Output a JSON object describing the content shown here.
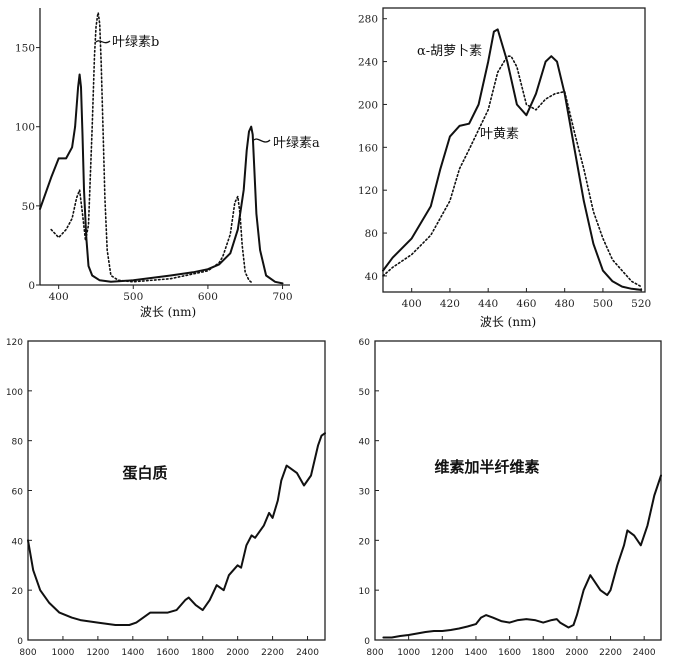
{
  "chart_data": [
    {
      "type": "line",
      "xlabel": "波长 (nm)",
      "ylabel": "",
      "xlim": [
        375,
        710
      ],
      "ylim": [
        0,
        175
      ],
      "xticks": [
        400,
        500,
        600,
        700
      ],
      "yticks": [
        0,
        50,
        100,
        150
      ],
      "series": [
        {
          "name": "叶绿素a",
          "style": "solid",
          "x": [
            375,
            390,
            400,
            410,
            418,
            422,
            426,
            428,
            430,
            432,
            434,
            437,
            440,
            445,
            455,
            470,
            500,
            550,
            580,
            600,
            615,
            630,
            640,
            648,
            652,
            655,
            658,
            660,
            662,
            665,
            670,
            678,
            690,
            700
          ],
          "y": [
            48,
            68,
            80,
            80,
            87,
            100,
            125,
            133,
            125,
            95,
            60,
            30,
            12,
            6,
            3,
            2,
            3,
            6,
            8,
            10,
            13,
            20,
            35,
            60,
            85,
            97,
            100,
            95,
            75,
            45,
            22,
            6,
            2,
            1
          ]
        },
        {
          "name": "叶绿素b",
          "style": "dotted",
          "x": [
            390,
            400,
            410,
            418,
            424,
            428,
            432,
            436,
            440,
            445,
            448,
            450,
            452,
            453,
            455,
            457,
            460,
            462,
            465,
            470,
            480,
            500,
            550,
            600,
            615,
            620,
            630,
            636,
            640,
            643,
            646,
            650,
            655,
            660
          ],
          "y": [
            35,
            30,
            35,
            42,
            55,
            60,
            45,
            28,
            38,
            100,
            145,
            163,
            170,
            172,
            165,
            140,
            90,
            55,
            22,
            6,
            3,
            2,
            4,
            9,
            14,
            18,
            32,
            52,
            56,
            45,
            25,
            8,
            3,
            1
          ]
        }
      ],
      "annotations": [
        "叶绿素b",
        "叶绿素a"
      ]
    },
    {
      "type": "line",
      "xlabel": "波长 (nm)",
      "ylabel": "",
      "xlim": [
        385,
        522
      ],
      "ylim": [
        25,
        290
      ],
      "xticks": [
        400,
        420,
        440,
        460,
        480,
        500,
        520
      ],
      "yticks": [
        40,
        80,
        120,
        160,
        200,
        240,
        280
      ],
      "series": [
        {
          "name": "α-胡萝卜素",
          "style": "solid",
          "x": [
            385,
            390,
            400,
            410,
            415,
            420,
            425,
            430,
            435,
            440,
            443,
            445,
            450,
            455,
            460,
            465,
            470,
            473,
            476,
            480,
            485,
            490,
            495,
            500,
            505,
            510,
            515,
            520
          ],
          "y": [
            45,
            57,
            75,
            105,
            140,
            170,
            180,
            182,
            200,
            240,
            268,
            270,
            240,
            200,
            190,
            210,
            240,
            245,
            240,
            210,
            160,
            110,
            70,
            45,
            35,
            30,
            28,
            27
          ]
        },
        {
          "name": "叶黄素",
          "style": "dotted",
          "x": [
            385,
            390,
            400,
            410,
            420,
            425,
            430,
            440,
            445,
            450,
            452,
            455,
            460,
            465,
            470,
            475,
            480,
            485,
            490,
            495,
            500,
            505,
            510,
            515,
            520
          ],
          "y": [
            40,
            48,
            60,
            78,
            110,
            140,
            158,
            195,
            230,
            245,
            245,
            235,
            200,
            195,
            205,
            210,
            212,
            175,
            140,
            100,
            75,
            55,
            45,
            35,
            30
          ]
        }
      ],
      "annotations": [
        "α-胡萝卜素",
        "叶黄素"
      ]
    },
    {
      "type": "line",
      "xlabel": "",
      "ylabel": "",
      "xlim": [
        800,
        2500
      ],
      "ylim": [
        0,
        120
      ],
      "xticks": [
        800,
        1000,
        1200,
        1400,
        1600,
        1800,
        2000,
        2200,
        2400
      ],
      "yticks": [
        0,
        20,
        40,
        60,
        80,
        100,
        120
      ],
      "series": [
        {
          "name": "蛋白质",
          "style": "solid",
          "x": [
            800,
            830,
            870,
            920,
            980,
            1050,
            1100,
            1200,
            1300,
            1380,
            1420,
            1460,
            1500,
            1550,
            1600,
            1650,
            1700,
            1720,
            1760,
            1800,
            1840,
            1880,
            1920,
            1950,
            2000,
            2020,
            2050,
            2080,
            2100,
            2150,
            2180,
            2200,
            2230,
            2250,
            2280,
            2300,
            2340,
            2380,
            2420,
            2460,
            2480,
            2500
          ],
          "y": [
            40,
            28,
            20,
            15,
            11,
            9,
            8,
            7,
            6,
            6,
            7,
            9,
            11,
            11,
            11,
            12,
            16,
            17,
            14,
            12,
            16,
            22,
            20,
            26,
            30,
            29,
            38,
            42,
            41,
            46,
            51,
            49,
            56,
            64,
            70,
            69,
            67,
            62,
            66,
            78,
            82,
            83
          ]
        }
      ],
      "center_label": "蛋白质"
    },
    {
      "type": "line",
      "xlabel": "",
      "ylabel": "",
      "xlim": [
        800,
        2500
      ],
      "ylim": [
        0,
        60
      ],
      "xticks": [
        800,
        1000,
        1200,
        1400,
        1600,
        1800,
        2000,
        2200,
        2400
      ],
      "yticks": [
        0,
        10,
        20,
        30,
        40,
        50,
        60
      ],
      "series": [
        {
          "name": "维素加半纤维素",
          "style": "solid",
          "x": [
            850,
            900,
            950,
            1000,
            1050,
            1100,
            1150,
            1200,
            1250,
            1300,
            1350,
            1400,
            1430,
            1460,
            1500,
            1550,
            1600,
            1650,
            1700,
            1750,
            1800,
            1850,
            1880,
            1900,
            1950,
            1980,
            2000,
            2040,
            2080,
            2100,
            2140,
            2180,
            2200,
            2240,
            2280,
            2300,
            2340,
            2380,
            2420,
            2460,
            2500
          ],
          "y": [
            0.5,
            0.5,
            0.8,
            1,
            1.3,
            1.6,
            1.8,
            1.8,
            2,
            2.3,
            2.7,
            3.2,
            4.5,
            5,
            4.5,
            3.8,
            3.5,
            4,
            4.2,
            4,
            3.5,
            4,
            4.2,
            3.5,
            2.5,
            3,
            5,
            10,
            13,
            12,
            10,
            9,
            10,
            15,
            19,
            22,
            21,
            19,
            23,
            29,
            33
          ]
        }
      ],
      "center_label": "维素加半纤维素"
    }
  ]
}
